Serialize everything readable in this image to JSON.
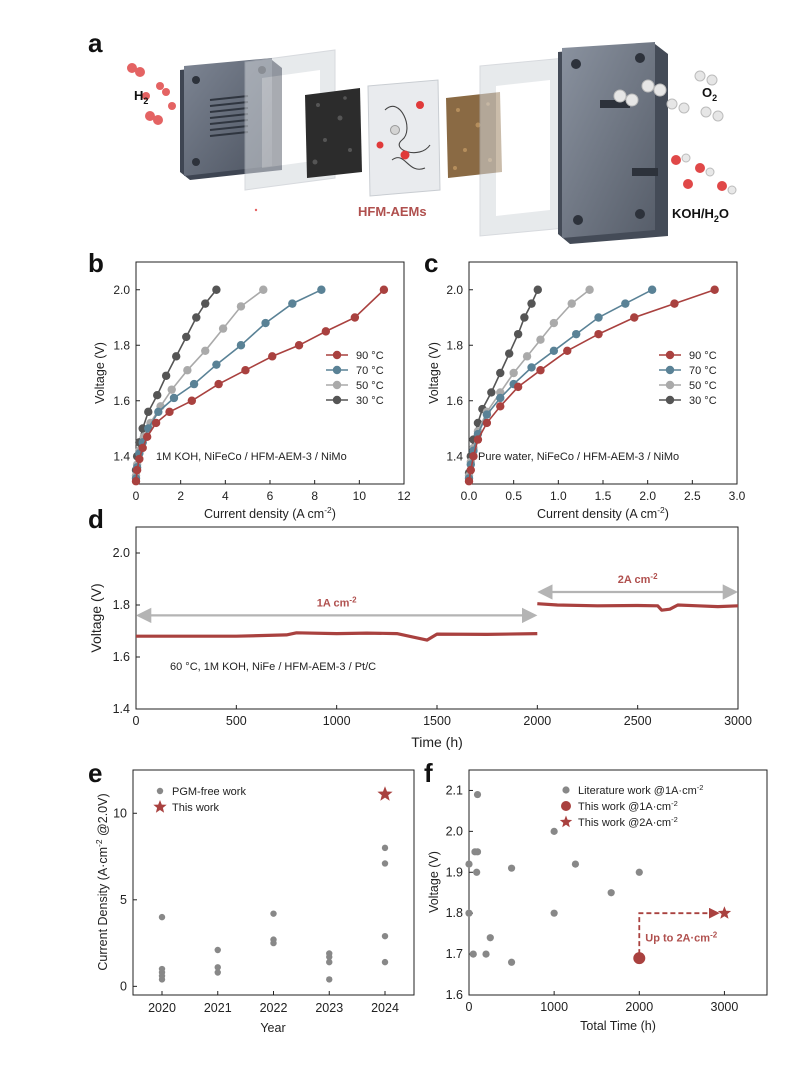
{
  "colors": {
    "c90": "#a9413f",
    "c70": "#5a8296",
    "c50": "#aaaaaa",
    "c30": "#555555",
    "red": "#a9413f",
    "grey": "#888888",
    "lightgrey": "#b4b4b4"
  },
  "schematic": {
    "panel": "a",
    "h2": "H",
    "h2_sub": "2",
    "o2": "O",
    "o2_sub": "2",
    "membrane": "HFM-AEMs",
    "koh_a": "KOH/H",
    "koh_sub": "2",
    "koh_b": "O"
  },
  "chart_data": [
    {
      "panel": "b",
      "type": "line",
      "xlabel": "Current density (A cm",
      "xlabel_sup": "-2",
      "xlabel_end": ")",
      "ylabel": "Voltage (V)",
      "xlim": [
        0,
        12
      ],
      "ylim": [
        1.3,
        2.1
      ],
      "xticks": [
        0,
        2,
        4,
        6,
        8,
        10,
        12
      ],
      "yticks": [
        1.4,
        1.6,
        1.8,
        2.0
      ],
      "ytick_labels": [
        "1.4",
        "1.6",
        "1.8",
        "2.0"
      ],
      "annotation": "1M KOH, NiFeCo / HFM-AEM-3 / NiMo",
      "legend_position": "center-right",
      "series": [
        {
          "name": "90 °C",
          "color_key": "c90",
          "x": [
            0,
            0.05,
            0.15,
            0.3,
            0.5,
            0.9,
            1.5,
            2.5,
            3.7,
            4.9,
            6.1,
            7.3,
            8.5,
            9.8,
            11.1
          ],
          "y": [
            1.31,
            1.35,
            1.39,
            1.43,
            1.47,
            1.52,
            1.56,
            1.6,
            1.66,
            1.71,
            1.76,
            1.8,
            1.85,
            1.9,
            2.0
          ]
        },
        {
          "name": "70 °C",
          "color_key": "c70",
          "x": [
            0,
            0.05,
            0.15,
            0.3,
            0.55,
            1.0,
            1.7,
            2.6,
            3.6,
            4.7,
            5.8,
            7.0,
            8.3
          ],
          "y": [
            1.32,
            1.36,
            1.41,
            1.45,
            1.5,
            1.56,
            1.61,
            1.66,
            1.73,
            1.8,
            1.88,
            1.95,
            2.0
          ]
        },
        {
          "name": "50 °C",
          "color_key": "c50",
          "x": [
            0,
            0.05,
            0.15,
            0.35,
            0.65,
            1.1,
            1.6,
            2.3,
            3.1,
            3.9,
            4.7,
            5.7
          ],
          "y": [
            1.33,
            1.37,
            1.42,
            1.47,
            1.52,
            1.58,
            1.64,
            1.71,
            1.78,
            1.86,
            1.94,
            2.0
          ]
        },
        {
          "name": "30 °C",
          "color_key": "c30",
          "x": [
            0,
            0.05,
            0.15,
            0.3,
            0.55,
            0.95,
            1.35,
            1.8,
            2.25,
            2.7,
            3.1,
            3.6
          ],
          "y": [
            1.35,
            1.4,
            1.45,
            1.5,
            1.56,
            1.62,
            1.69,
            1.76,
            1.83,
            1.9,
            1.95,
            2.0
          ]
        }
      ]
    },
    {
      "panel": "c",
      "type": "line",
      "xlabel": "Current density (A cm",
      "xlabel_sup": "-2",
      "xlabel_end": ")",
      "ylabel": "Voltage (V)",
      "xlim": [
        0,
        3.0
      ],
      "ylim": [
        1.3,
        2.1
      ],
      "xticks": [
        0,
        0.5,
        1.0,
        1.5,
        2.0,
        2.5,
        3.0
      ],
      "xtick_labels": [
        "0.0",
        "0.5",
        "1.0",
        "1.5",
        "2.0",
        "2.5",
        "3.0"
      ],
      "yticks": [
        1.4,
        1.6,
        1.8,
        2.0
      ],
      "ytick_labels": [
        "1.4",
        "1.6",
        "1.8",
        "2.0"
      ],
      "annotation": "Pure water, NiFeCo / HFM-AEM-3 / NiMo",
      "legend_position": "center-right",
      "series": [
        {
          "name": "90 °C",
          "color_key": "c90",
          "x": [
            0,
            0.02,
            0.05,
            0.1,
            0.2,
            0.35,
            0.55,
            0.8,
            1.1,
            1.45,
            1.85,
            2.3,
            2.75
          ],
          "y": [
            1.31,
            1.35,
            1.4,
            1.46,
            1.52,
            1.58,
            1.65,
            1.71,
            1.78,
            1.84,
            1.9,
            1.95,
            2.0
          ]
        },
        {
          "name": "70 °C",
          "color_key": "c70",
          "x": [
            0,
            0.02,
            0.05,
            0.1,
            0.2,
            0.35,
            0.5,
            0.7,
            0.95,
            1.2,
            1.45,
            1.75,
            2.05
          ],
          "y": [
            1.32,
            1.37,
            1.42,
            1.48,
            1.55,
            1.61,
            1.66,
            1.72,
            1.78,
            1.84,
            1.9,
            1.95,
            2.0
          ]
        },
        {
          "name": "50 °C",
          "color_key": "c50",
          "x": [
            0,
            0.02,
            0.05,
            0.1,
            0.2,
            0.35,
            0.5,
            0.65,
            0.8,
            0.95,
            1.15,
            1.35
          ],
          "y": [
            1.33,
            1.38,
            1.43,
            1.49,
            1.56,
            1.63,
            1.7,
            1.76,
            1.82,
            1.88,
            1.95,
            2.0
          ]
        },
        {
          "name": "30 °C",
          "color_key": "c30",
          "x": [
            0,
            0.02,
            0.05,
            0.1,
            0.15,
            0.25,
            0.35,
            0.45,
            0.55,
            0.62,
            0.7,
            0.77
          ],
          "y": [
            1.34,
            1.4,
            1.46,
            1.52,
            1.57,
            1.63,
            1.7,
            1.77,
            1.84,
            1.9,
            1.95,
            2.0
          ]
        }
      ]
    },
    {
      "panel": "d",
      "type": "line",
      "xlabel": "Time (h)",
      "ylabel": "Voltage (V)",
      "xlim": [
        0,
        3000
      ],
      "ylim": [
        1.4,
        2.1
      ],
      "xticks": [
        0,
        500,
        1000,
        1500,
        2000,
        2500,
        3000
      ],
      "yticks": [
        1.4,
        1.6,
        1.8,
        2.0
      ],
      "ytick_labels": [
        "1.4",
        "1.6",
        "1.8",
        "2.0"
      ],
      "annotation": "60 °C, 1M KOH, NiFe / HFM-AEM-3 / Pt/C",
      "regions": [
        {
          "label": "1A cm",
          "sup": "-2",
          "x0": 0,
          "x1": 2000,
          "y": 1.76
        },
        {
          "label": "2A cm",
          "sup": "-2",
          "x0": 2000,
          "x1": 3000,
          "y": 1.85
        }
      ],
      "series": [
        {
          "name": "1A cm-2",
          "color_key": "red",
          "x": [
            0,
            250,
            500,
            750,
            800,
            1000,
            1150,
            1300,
            1450,
            1500,
            1750,
            2000
          ],
          "y": [
            1.68,
            1.68,
            1.68,
            1.685,
            1.693,
            1.69,
            1.692,
            1.69,
            1.665,
            1.688,
            1.687,
            1.69
          ]
        },
        {
          "name": "2A cm-2",
          "color_key": "red",
          "x": [
            2000,
            2100,
            2300,
            2500,
            2600,
            2620,
            2660,
            2700,
            2800,
            2900,
            3000
          ],
          "y": [
            1.805,
            1.8,
            1.797,
            1.798,
            1.797,
            1.78,
            1.784,
            1.8,
            1.797,
            1.794,
            1.797
          ]
        }
      ]
    },
    {
      "panel": "e",
      "type": "scatter",
      "xlabel": "Year",
      "ylabel": "Current Density (A·cm",
      "ylabel_sup": "-2",
      "ylabel_end": " @2.0V)",
      "categories": [
        "2020",
        "2021",
        "2022",
        "2023",
        "2024"
      ],
      "ylim": [
        -0.5,
        12.5
      ],
      "yticks": [
        0,
        5,
        10
      ],
      "legend_position": "top-left",
      "series": [
        {
          "name": "PGM-free work",
          "color_key": "grey",
          "x": [
            "2020",
            "2020",
            "2020",
            "2020",
            "2020",
            "2021",
            "2021",
            "2021",
            "2022",
            "2022",
            "2022",
            "2023",
            "2023",
            "2023",
            "2023",
            "2024",
            "2024",
            "2024",
            "2024"
          ],
          "y": [
            4.0,
            1.0,
            0.8,
            0.6,
            0.4,
            2.1,
            1.1,
            0.8,
            4.2,
            2.7,
            2.5,
            1.9,
            1.7,
            1.4,
            0.4,
            8.0,
            7.1,
            2.9,
            1.4
          ]
        },
        {
          "name": "This work",
          "color_key": "red",
          "marker": "star",
          "x": [
            "2024"
          ],
          "y": [
            11.1
          ]
        }
      ]
    },
    {
      "panel": "f",
      "type": "scatter",
      "xlabel": "Total Time (h)",
      "ylabel": "Voltage (V)",
      "xlim": [
        0,
        3500
      ],
      "ylim": [
        1.6,
        2.15
      ],
      "xticks": [
        0,
        1000,
        2000,
        3000
      ],
      "yticks": [
        1.6,
        1.7,
        1.8,
        1.9,
        2.0,
        2.1
      ],
      "ytick_labels": [
        "1.6",
        "1.7",
        "1.8",
        "1.9",
        "2.0",
        "2.1"
      ],
      "annotation": "Up to 2A·cm",
      "annotation_sup": "-2",
      "legend_position": "top-right",
      "series": [
        {
          "name": "Literature work @1A·cm",
          "name_sup": "-2",
          "color_key": "grey",
          "x": [
            0,
            0,
            50,
            70,
            90,
            100,
            100,
            200,
            250,
            500,
            500,
            1000,
            1000,
            1250,
            1670,
            2000
          ],
          "y": [
            1.92,
            1.8,
            1.7,
            1.95,
            1.9,
            1.95,
            2.09,
            1.7,
            1.74,
            1.68,
            1.91,
            2.0,
            1.8,
            1.92,
            1.85,
            1.9
          ]
        },
        {
          "name": "This work @1A·cm",
          "name_sup": "-2",
          "color_key": "red",
          "marker": "big-circle",
          "x": [
            2000
          ],
          "y": [
            1.69
          ]
        },
        {
          "name": "This work @2A·cm",
          "name_sup": "-2",
          "color_key": "red",
          "marker": "star",
          "x": [
            3000
          ],
          "y": [
            1.8
          ]
        }
      ]
    }
  ]
}
